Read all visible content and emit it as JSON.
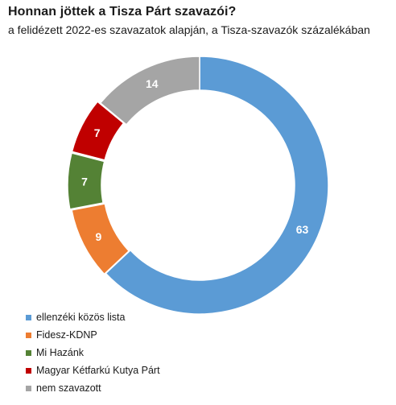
{
  "title": "Honnan jöttek a Tisza Párt szavazói?",
  "subtitle": "a felidézett 2022-es szavazatok alapján, a Tisza-szavazók százalékában",
  "chart_data": {
    "type": "pie",
    "variant": "donut",
    "title": "Honnan jöttek a Tisza Párt szavazói?",
    "subtitle": "a felidézett 2022-es szavazatok alapján, a Tisza-szavazók százalékában",
    "categories": [
      "ellenzéki közös lista",
      "Fidesz-KDNP",
      "Mi Hazánk",
      "Magyar Kétfarkú Kutya Párt",
      "nem szavazott"
    ],
    "values": [
      63,
      9,
      7,
      7,
      14
    ],
    "data_labels": [
      "63",
      "9",
      "7",
      "7",
      "14"
    ],
    "colors": [
      "#5b9bd5",
      "#ed7d31",
      "#548235",
      "#c00000",
      "#a5a5a5"
    ],
    "legend_position": "bottom-left"
  },
  "legend": {
    "items": [
      {
        "label": "ellenzéki közös lista",
        "color": "#5b9bd5"
      },
      {
        "label": "Fidesz-KDNP",
        "color": "#ed7d31"
      },
      {
        "label": "Mi Hazánk",
        "color": "#548235"
      },
      {
        "label": "Magyar Kétfarkú Kutya Párt",
        "color": "#c00000"
      },
      {
        "label": "nem szavazott",
        "color": "#a5a5a5"
      }
    ]
  }
}
